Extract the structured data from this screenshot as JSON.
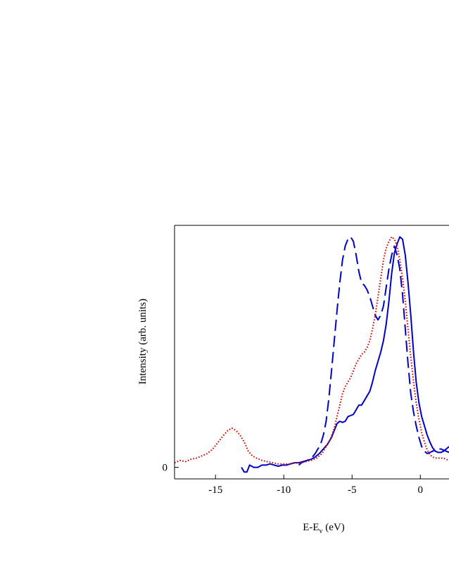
{
  "chart_data": {
    "type": "line",
    "title": "",
    "xlabel_main": "E-E",
    "xlabel_sub": "v",
    "xlabel_unit": " (eV)",
    "ylabel": "Intensity (arb. units)",
    "xlim": [
      -18,
      2.1
    ],
    "ylim": [
      -0.05,
      1.05
    ],
    "x_ticks": [
      -15,
      -10,
      -5,
      0
    ],
    "x_tick_labels": [
      "-15",
      "-10",
      "-5",
      "0"
    ],
    "y_ticks": [
      0
    ],
    "y_tick_labels": [
      "0"
    ],
    "grid": false,
    "legend": "none",
    "series": [
      {
        "style": "solid",
        "color": "#0000c0",
        "x": [
          -13.1,
          -12.9,
          -12.7,
          -12.5,
          -12.2,
          -11.9,
          -11.6,
          -11.3,
          -11.0,
          -10.7,
          -10.4,
          -10.1,
          -9.8,
          -9.5,
          -9.2,
          -8.9,
          -8.6,
          -8.3,
          -8.0,
          -7.7,
          -7.4,
          -7.1,
          -6.8,
          -6.5,
          -6.3,
          -6.1,
          -5.9,
          -5.7,
          -5.5,
          -5.3,
          -5.1,
          -4.9,
          -4.7,
          -4.5,
          -4.3,
          -4.1,
          -3.9,
          -3.7,
          -3.5,
          -3.3,
          -3.1,
          -2.9,
          -2.7,
          -2.5,
          -2.3,
          -2.1,
          -1.9,
          -1.7,
          -1.5,
          -1.3,
          -1.1,
          -0.9,
          -0.7,
          -0.5,
          -0.3,
          -0.1,
          0.1,
          0.3,
          0.5,
          0.7,
          0.9,
          1.1,
          1.3,
          1.5,
          1.7,
          1.9,
          2.1
        ],
        "y": [
          0.0,
          -0.02,
          -0.02,
          0.01,
          0.0,
          0.0,
          0.01,
          0.01,
          0.015,
          0.01,
          0.005,
          0.01,
          0.01,
          0.015,
          0.02,
          0.02,
          0.025,
          0.03,
          0.035,
          0.045,
          0.06,
          0.08,
          0.1,
          0.13,
          0.16,
          0.19,
          0.2,
          0.195,
          0.2,
          0.22,
          0.225,
          0.23,
          0.25,
          0.27,
          0.27,
          0.29,
          0.31,
          0.33,
          0.37,
          0.42,
          0.46,
          0.5,
          0.55,
          0.62,
          0.72,
          0.84,
          0.93,
          0.97,
          1.0,
          0.99,
          0.92,
          0.8,
          0.66,
          0.5,
          0.37,
          0.28,
          0.22,
          0.18,
          0.14,
          0.11,
          0.085,
          0.07,
          0.065,
          0.065,
          0.07,
          0.08,
          0.09
        ]
      },
      {
        "style": "dashed",
        "color": "#0000c0",
        "x": [
          -8.9,
          -8.7,
          -8.5,
          -8.3,
          -8.1,
          -7.9,
          -7.7,
          -7.5,
          -7.3,
          -7.1,
          -6.9,
          -6.7,
          -6.5,
          -6.3,
          -6.1,
          -5.9,
          -5.7,
          -5.5,
          -5.3,
          -5.1,
          -4.9,
          -4.7,
          -4.5,
          -4.3,
          -4.1,
          -3.9,
          -3.7,
          -3.5,
          -3.3,
          -3.1,
          -2.9,
          -2.7,
          -2.5,
          -2.3,
          -2.1,
          -1.9,
          -1.7,
          -1.5,
          -1.3,
          -1.1,
          -0.9,
          -0.7,
          -0.5,
          -0.3,
          -0.1,
          0.1,
          0.3,
          0.5,
          0.7,
          0.9,
          1.1,
          1.3,
          1.5,
          1.7,
          1.9,
          2.1
        ],
        "y": [
          0.01,
          0.02,
          0.025,
          0.03,
          0.035,
          0.045,
          0.06,
          0.08,
          0.1,
          0.14,
          0.2,
          0.3,
          0.42,
          0.55,
          0.68,
          0.8,
          0.9,
          0.96,
          0.99,
          1.0,
          0.98,
          0.92,
          0.85,
          0.8,
          0.79,
          0.77,
          0.74,
          0.7,
          0.66,
          0.64,
          0.66,
          0.7,
          0.78,
          0.86,
          0.92,
          0.96,
          0.92,
          0.86,
          0.75,
          0.6,
          0.45,
          0.32,
          0.24,
          0.18,
          0.13,
          0.09,
          0.07,
          0.06,
          0.065,
          0.07,
          0.075,
          0.08,
          0.08,
          0.075,
          0.07,
          0.065
        ]
      },
      {
        "style": "dotted",
        "color": "#cc0000",
        "x": [
          -18.0,
          -17.6,
          -17.2,
          -16.8,
          -16.4,
          -16.0,
          -15.6,
          -15.2,
          -14.8,
          -14.4,
          -14.1,
          -13.8,
          -13.5,
          -13.2,
          -12.9,
          -12.6,
          -12.3,
          -12.0,
          -11.6,
          -11.2,
          -10.8,
          -10.4,
          -10.0,
          -9.6,
          -9.2,
          -8.8,
          -8.4,
          -8.0,
          -7.6,
          -7.2,
          -6.9,
          -6.6,
          -6.3,
          -6.1,
          -5.9,
          -5.7,
          -5.5,
          -5.3,
          -5.1,
          -4.9,
          -4.7,
          -4.5,
          -4.3,
          -4.1,
          -3.9,
          -3.7,
          -3.5,
          -3.3,
          -3.1,
          -2.9,
          -2.7,
          -2.5,
          -2.3,
          -2.1,
          -1.9,
          -1.7,
          -1.5,
          -1.3,
          -1.1,
          -0.9,
          -0.7,
          -0.5,
          -0.3,
          -0.1,
          0.1,
          0.3,
          0.5,
          0.7,
          0.9,
          1.1,
          1.3,
          1.5,
          1.7,
          1.9,
          2.1
        ],
        "y": [
          0.02,
          0.03,
          0.025,
          0.035,
          0.04,
          0.05,
          0.06,
          0.08,
          0.11,
          0.14,
          0.16,
          0.17,
          0.16,
          0.14,
          0.11,
          0.07,
          0.05,
          0.04,
          0.03,
          0.025,
          0.02,
          0.015,
          0.015,
          0.015,
          0.02,
          0.02,
          0.025,
          0.03,
          0.04,
          0.06,
          0.09,
          0.12,
          0.17,
          0.22,
          0.27,
          0.32,
          0.35,
          0.37,
          0.39,
          0.42,
          0.45,
          0.47,
          0.49,
          0.5,
          0.52,
          0.55,
          0.6,
          0.66,
          0.74,
          0.82,
          0.9,
          0.95,
          0.98,
          1.0,
          0.99,
          0.96,
          0.9,
          0.82,
          0.72,
          0.6,
          0.48,
          0.37,
          0.28,
          0.21,
          0.15,
          0.11,
          0.075,
          0.055,
          0.045,
          0.04,
          0.04,
          0.04,
          0.04,
          0.035,
          0.03
        ]
      }
    ]
  }
}
